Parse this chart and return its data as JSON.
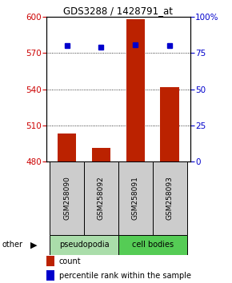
{
  "title": "GDS3288 / 1428791_at",
  "samples": [
    "GSM258090",
    "GSM258092",
    "GSM258091",
    "GSM258093"
  ],
  "groups": [
    "pseudopodia",
    "pseudopodia",
    "cell bodies",
    "cell bodies"
  ],
  "bar_values": [
    503,
    491,
    598,
    542
  ],
  "percentile_values": [
    80,
    79,
    81,
    80
  ],
  "ymin": 480,
  "ymax": 600,
  "yticks_left": [
    480,
    510,
    540,
    570,
    600
  ],
  "yticks_right": [
    0,
    25,
    50,
    75,
    100
  ],
  "bar_color": "#bb2200",
  "dot_color": "#0000cc",
  "group_colors": {
    "pseudopodia": "#aaddaa",
    "cell bodies": "#55cc55"
  },
  "left_tick_color": "#cc0000",
  "right_tick_color": "#0000cc",
  "other_label": "other",
  "legend_count": "count",
  "legend_percentile": "percentile rank within the sample",
  "fig_width": 2.9,
  "fig_height": 3.54,
  "dpi": 100
}
